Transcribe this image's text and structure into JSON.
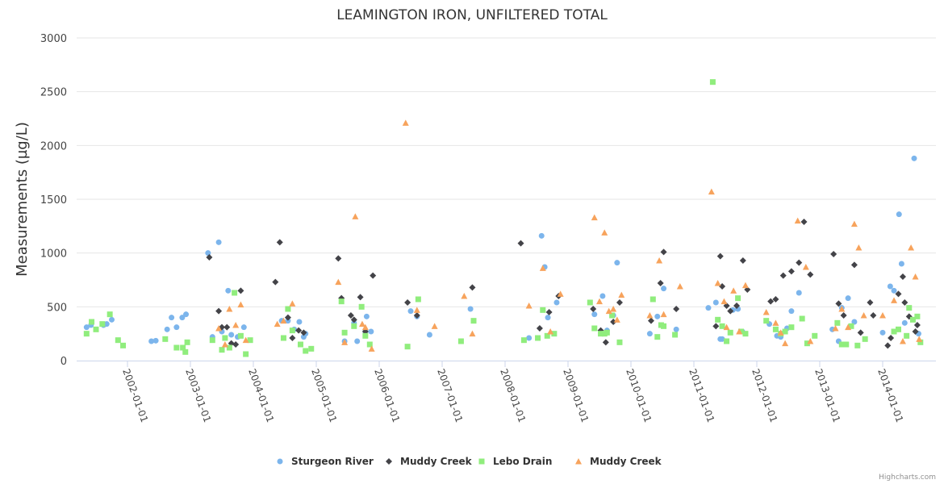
{
  "chart_data": {
    "type": "scatter",
    "title": "LEAMINGTON IRON, UNFILTERED TOTAL",
    "xlabel": "",
    "ylabel": "Measurements (µg/L)",
    "ylim": [
      0,
      3000
    ],
    "yticks": [
      "0",
      "500",
      "1000",
      "1500",
      "2000",
      "2500",
      "3000"
    ],
    "xlim_years": [
      2001.23,
      2015.3
    ],
    "xticks": [
      {
        "label": "2002-01-01",
        "year": 2002
      },
      {
        "label": "2003-01-01",
        "year": 2003
      },
      {
        "label": "2004-01-01",
        "year": 2004
      },
      {
        "label": "2005-01-01",
        "year": 2005
      },
      {
        "label": "2006-01-01",
        "year": 2006
      },
      {
        "label": "2007-01-01",
        "year": 2007
      },
      {
        "label": "2008-01-01",
        "year": 2008
      },
      {
        "label": "2009-01-01",
        "year": 2009
      },
      {
        "label": "2010-01-01",
        "year": 2010
      },
      {
        "label": "2011-01-01",
        "year": 2011
      },
      {
        "label": "2012-01-01",
        "year": 2012
      },
      {
        "label": "2013-01-01",
        "year": 2013
      },
      {
        "label": "2014-01-01",
        "year": 2014
      }
    ],
    "grid": true,
    "legend_position": "bottom-center",
    "series": [
      {
        "name": "Sturgeon River",
        "color": "#7cb5ec",
        "marker": "circle",
        "points": [
          [
            2001.35,
            310
          ],
          [
            2001.42,
            330
          ],
          [
            2001.62,
            330
          ],
          [
            2001.67,
            340
          ],
          [
            2001.75,
            380
          ],
          [
            2002.38,
            180
          ],
          [
            2002.45,
            185
          ],
          [
            2002.63,
            290
          ],
          [
            2002.7,
            400
          ],
          [
            2002.78,
            310
          ],
          [
            2002.87,
            400
          ],
          [
            2002.93,
            430
          ],
          [
            2003.28,
            1000
          ],
          [
            2003.35,
            220
          ],
          [
            2003.45,
            1100
          ],
          [
            2003.5,
            270
          ],
          [
            2003.6,
            650
          ],
          [
            2003.65,
            240
          ],
          [
            2003.75,
            220
          ],
          [
            2003.85,
            310
          ],
          [
            2004.45,
            370
          ],
          [
            2004.55,
            370
          ],
          [
            2004.65,
            290
          ],
          [
            2004.73,
            360
          ],
          [
            2004.8,
            220
          ],
          [
            2004.83,
            250
          ],
          [
            2005.45,
            180
          ],
          [
            2005.6,
            350
          ],
          [
            2005.65,
            180
          ],
          [
            2005.78,
            270
          ],
          [
            2005.8,
            410
          ],
          [
            2005.87,
            270
          ],
          [
            2006.5,
            460
          ],
          [
            2006.6,
            410
          ],
          [
            2006.8,
            240
          ],
          [
            2007.45,
            480
          ],
          [
            2008.38,
            210
          ],
          [
            2008.58,
            1160
          ],
          [
            2008.63,
            870
          ],
          [
            2008.68,
            400
          ],
          [
            2008.82,
            540
          ],
          [
            2009.42,
            430
          ],
          [
            2009.55,
            600
          ],
          [
            2009.62,
            280
          ],
          [
            2009.72,
            420
          ],
          [
            2009.78,
            910
          ],
          [
            2010.3,
            250
          ],
          [
            2010.42,
            410
          ],
          [
            2010.52,
            670
          ],
          [
            2010.72,
            290
          ],
          [
            2011.23,
            490
          ],
          [
            2011.35,
            540
          ],
          [
            2011.42,
            200
          ],
          [
            2011.45,
            200
          ],
          [
            2011.62,
            470
          ],
          [
            2011.7,
            480
          ],
          [
            2011.77,
            270
          ],
          [
            2012.2,
            340
          ],
          [
            2012.32,
            230
          ],
          [
            2012.38,
            220
          ],
          [
            2012.48,
            300
          ],
          [
            2012.55,
            460
          ],
          [
            2012.67,
            630
          ],
          [
            2013.2,
            290
          ],
          [
            2013.3,
            180
          ],
          [
            2013.35,
            490
          ],
          [
            2013.45,
            580
          ],
          [
            2013.55,
            360
          ],
          [
            2014.0,
            260
          ],
          [
            2014.12,
            690
          ],
          [
            2014.18,
            650
          ],
          [
            2014.26,
            1360
          ],
          [
            2014.3,
            900
          ],
          [
            2014.35,
            350
          ],
          [
            2014.5,
            1880
          ],
          [
            2014.57,
            250
          ]
        ]
      },
      {
        "name": "Muddy Creek",
        "color": "#434348",
        "marker": "diamond",
        "points": [
          [
            2003.3,
            960
          ],
          [
            2003.45,
            460
          ],
          [
            2003.5,
            310
          ],
          [
            2003.58,
            310
          ],
          [
            2003.65,
            160
          ],
          [
            2003.72,
            150
          ],
          [
            2003.8,
            650
          ],
          [
            2004.35,
            730
          ],
          [
            2004.42,
            1100
          ],
          [
            2004.55,
            400
          ],
          [
            2004.62,
            210
          ],
          [
            2004.72,
            280
          ],
          [
            2004.8,
            260
          ],
          [
            2005.35,
            950
          ],
          [
            2005.4,
            580
          ],
          [
            2005.55,
            420
          ],
          [
            2005.6,
            380
          ],
          [
            2005.7,
            590
          ],
          [
            2005.78,
            270
          ],
          [
            2005.9,
            790
          ],
          [
            2006.45,
            540
          ],
          [
            2006.6,
            420
          ],
          [
            2007.48,
            680
          ],
          [
            2008.25,
            1090
          ],
          [
            2008.55,
            300
          ],
          [
            2008.7,
            450
          ],
          [
            2008.85,
            600
          ],
          [
            2009.4,
            480
          ],
          [
            2009.52,
            280
          ],
          [
            2009.6,
            170
          ],
          [
            2009.72,
            360
          ],
          [
            2009.82,
            540
          ],
          [
            2010.32,
            370
          ],
          [
            2010.47,
            720
          ],
          [
            2010.52,
            1010
          ],
          [
            2010.72,
            480
          ],
          [
            2011.35,
            320
          ],
          [
            2011.42,
            970
          ],
          [
            2011.45,
            690
          ],
          [
            2011.52,
            510
          ],
          [
            2011.58,
            460
          ],
          [
            2011.68,
            510
          ],
          [
            2011.78,
            930
          ],
          [
            2011.85,
            660
          ],
          [
            2012.22,
            550
          ],
          [
            2012.3,
            570
          ],
          [
            2012.42,
            790
          ],
          [
            2012.55,
            830
          ],
          [
            2012.67,
            910
          ],
          [
            2012.75,
            1290
          ],
          [
            2012.85,
            800
          ],
          [
            2013.22,
            990
          ],
          [
            2013.3,
            530
          ],
          [
            2013.38,
            420
          ],
          [
            2013.55,
            890
          ],
          [
            2013.65,
            260
          ],
          [
            2013.8,
            540
          ],
          [
            2013.85,
            420
          ],
          [
            2014.08,
            140
          ],
          [
            2014.13,
            210
          ],
          [
            2014.25,
            620
          ],
          [
            2014.32,
            780
          ],
          [
            2014.35,
            540
          ],
          [
            2014.42,
            410
          ],
          [
            2014.52,
            270
          ],
          [
            2014.55,
            330
          ]
        ]
      },
      {
        "name": "Lebo Drain",
        "color": "#90ed7d",
        "marker": "square",
        "points": [
          [
            2001.35,
            250
          ],
          [
            2001.43,
            360
          ],
          [
            2001.5,
            290
          ],
          [
            2001.6,
            340
          ],
          [
            2001.72,
            430
          ],
          [
            2001.85,
            190
          ],
          [
            2001.93,
            140
          ],
          [
            2002.6,
            200
          ],
          [
            2002.78,
            120
          ],
          [
            2002.88,
            120
          ],
          [
            2002.92,
            80
          ],
          [
            2002.95,
            170
          ],
          [
            2003.35,
            190
          ],
          [
            2003.5,
            100
          ],
          [
            2003.55,
            210
          ],
          [
            2003.62,
            120
          ],
          [
            2003.7,
            630
          ],
          [
            2003.8,
            230
          ],
          [
            2003.88,
            60
          ],
          [
            2003.95,
            190
          ],
          [
            2004.48,
            210
          ],
          [
            2004.55,
            480
          ],
          [
            2004.62,
            280
          ],
          [
            2004.75,
            150
          ],
          [
            2004.83,
            90
          ],
          [
            2004.92,
            110
          ],
          [
            2005.4,
            550
          ],
          [
            2005.45,
            260
          ],
          [
            2005.6,
            320
          ],
          [
            2005.72,
            500
          ],
          [
            2005.78,
            230
          ],
          [
            2005.85,
            150
          ],
          [
            2006.45,
            130
          ],
          [
            2006.62,
            570
          ],
          [
            2007.3,
            180
          ],
          [
            2007.5,
            370
          ],
          [
            2008.3,
            190
          ],
          [
            2008.52,
            210
          ],
          [
            2008.6,
            470
          ],
          [
            2008.67,
            230
          ],
          [
            2008.78,
            250
          ],
          [
            2009.35,
            540
          ],
          [
            2009.42,
            300
          ],
          [
            2009.52,
            250
          ],
          [
            2009.58,
            250
          ],
          [
            2009.62,
            260
          ],
          [
            2009.7,
            420
          ],
          [
            2009.82,
            170
          ],
          [
            2010.35,
            570
          ],
          [
            2010.42,
            220
          ],
          [
            2010.48,
            330
          ],
          [
            2010.52,
            320
          ],
          [
            2010.7,
            240
          ],
          [
            2011.3,
            2590
          ],
          [
            2011.38,
            380
          ],
          [
            2011.45,
            320
          ],
          [
            2011.52,
            180
          ],
          [
            2011.58,
            260
          ],
          [
            2011.7,
            580
          ],
          [
            2011.75,
            270
          ],
          [
            2011.82,
            250
          ],
          [
            2012.15,
            370
          ],
          [
            2012.3,
            290
          ],
          [
            2012.38,
            250
          ],
          [
            2012.45,
            270
          ],
          [
            2012.55,
            310
          ],
          [
            2012.72,
            390
          ],
          [
            2012.8,
            160
          ],
          [
            2012.92,
            230
          ],
          [
            2013.28,
            350
          ],
          [
            2013.35,
            150
          ],
          [
            2013.42,
            150
          ],
          [
            2013.5,
            320
          ],
          [
            2013.6,
            140
          ],
          [
            2013.72,
            200
          ],
          [
            2014.18,
            270
          ],
          [
            2014.25,
            290
          ],
          [
            2014.38,
            230
          ],
          [
            2014.42,
            490
          ],
          [
            2014.48,
            380
          ],
          [
            2014.55,
            410
          ],
          [
            2014.6,
            170
          ]
        ]
      },
      {
        "name": "Muddy Creek",
        "color": "#f7a35c",
        "marker": "triangle",
        "points": [
          [
            2003.45,
            300
          ],
          [
            2003.55,
            150
          ],
          [
            2003.62,
            480
          ],
          [
            2003.72,
            330
          ],
          [
            2003.8,
            520
          ],
          [
            2003.88,
            190
          ],
          [
            2004.38,
            340
          ],
          [
            2004.48,
            370
          ],
          [
            2004.62,
            530
          ],
          [
            2005.35,
            730
          ],
          [
            2005.45,
            170
          ],
          [
            2005.62,
            1340
          ],
          [
            2005.73,
            340
          ],
          [
            2005.78,
            310
          ],
          [
            2005.88,
            110
          ],
          [
            2006.42,
            2210
          ],
          [
            2006.6,
            470
          ],
          [
            2006.88,
            320
          ],
          [
            2007.35,
            600
          ],
          [
            2007.48,
            250
          ],
          [
            2008.38,
            510
          ],
          [
            2008.6,
            860
          ],
          [
            2008.72,
            270
          ],
          [
            2008.88,
            620
          ],
          [
            2009.42,
            1330
          ],
          [
            2009.5,
            550
          ],
          [
            2009.58,
            1190
          ],
          [
            2009.65,
            460
          ],
          [
            2009.72,
            480
          ],
          [
            2009.78,
            380
          ],
          [
            2009.85,
            610
          ],
          [
            2010.3,
            420
          ],
          [
            2010.45,
            930
          ],
          [
            2010.52,
            430
          ],
          [
            2010.78,
            690
          ],
          [
            2011.28,
            1570
          ],
          [
            2011.38,
            720
          ],
          [
            2011.48,
            550
          ],
          [
            2011.52,
            310
          ],
          [
            2011.63,
            650
          ],
          [
            2011.72,
            270
          ],
          [
            2011.82,
            700
          ],
          [
            2012.15,
            450
          ],
          [
            2012.3,
            350
          ],
          [
            2012.38,
            260
          ],
          [
            2012.45,
            160
          ],
          [
            2012.65,
            1300
          ],
          [
            2012.78,
            870
          ],
          [
            2012.85,
            180
          ],
          [
            2013.25,
            300
          ],
          [
            2013.35,
            480
          ],
          [
            2013.45,
            310
          ],
          [
            2013.55,
            1270
          ],
          [
            2013.62,
            1050
          ],
          [
            2013.7,
            420
          ],
          [
            2014.0,
            420
          ],
          [
            2014.18,
            560
          ],
          [
            2014.32,
            180
          ],
          [
            2014.45,
            1050
          ],
          [
            2014.52,
            780
          ],
          [
            2014.58,
            200
          ]
        ]
      }
    ]
  },
  "credits": "Highcharts.com"
}
